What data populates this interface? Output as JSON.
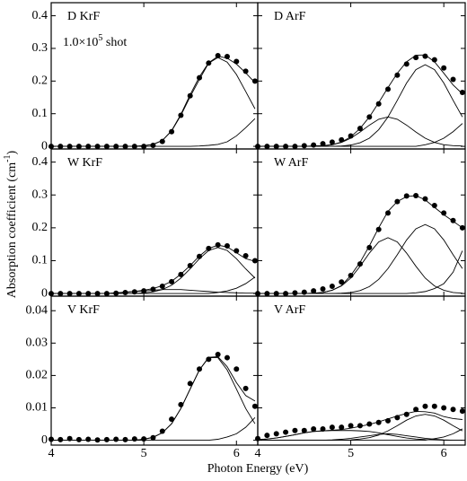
{
  "y_label": "Absorption coefficient (cm",
  "y_label_sup": "-1",
  "y_label_end": ")",
  "x_label": "Photon Energy (eV)",
  "annotation": "1.0×10",
  "annotation_sup": "5",
  "annotation_end": " shot",
  "chart_data": [
    {
      "type": "scatter",
      "label": "D  KrF",
      "xlim": [
        4,
        6.23
      ],
      "ylim": [
        -0.008,
        0.44
      ],
      "xticks": [
        4,
        5,
        6
      ],
      "yticks": [
        0,
        0.1,
        0.2,
        0.3,
        0.4
      ],
      "show_xtick_labels": false,
      "show_ytick_labels": true,
      "x": [
        4,
        4.1,
        4.2,
        4.3,
        4.4,
        4.5,
        4.6,
        4.7,
        4.8,
        4.9,
        5,
        5.1,
        5.2,
        5.3,
        5.4,
        5.5,
        5.6,
        5.7,
        5.8,
        5.9,
        6,
        6.1,
        6.2
      ],
      "series": [
        {
          "style": "markers",
          "color": "#000000",
          "values": [
            0,
            0,
            0,
            0,
            0,
            0,
            0,
            0,
            0,
            0,
            0,
            0.003,
            0.015,
            0.045,
            0.095,
            0.155,
            0.21,
            0.255,
            0.278,
            0.275,
            0.26,
            0.23,
            0.2
          ]
        },
        {
          "style": "line",
          "color": "#000000",
          "values": [
            0,
            0,
            0,
            0,
            0,
            0,
            0,
            0,
            0,
            0,
            0.002,
            0.006,
            0.018,
            0.048,
            0.098,
            0.158,
            0.213,
            0.256,
            0.276,
            0.27,
            0.252,
            0.225,
            0.195
          ]
        },
        {
          "style": "line",
          "color": "#000000",
          "values": [
            0,
            0,
            0,
            0,
            0,
            0,
            0,
            0,
            0,
            0,
            0.002,
            0.006,
            0.018,
            0.047,
            0.095,
            0.152,
            0.205,
            0.255,
            0.272,
            0.258,
            0.22,
            0.168,
            0.115
          ]
        },
        {
          "style": "line",
          "color": "#000000",
          "values": [
            0,
            0,
            0,
            0,
            0,
            0,
            0,
            0,
            0,
            0,
            0,
            0,
            0,
            0,
            0,
            0,
            0.001,
            0.003,
            0.006,
            0.014,
            0.032,
            0.057,
            0.085
          ]
        }
      ]
    },
    {
      "type": "scatter",
      "label": "D  ArF",
      "xlim": [
        4,
        6.23
      ],
      "ylim": [
        -0.008,
        0.44
      ],
      "xticks": [
        4,
        5,
        6
      ],
      "yticks": [
        0,
        0.1,
        0.2,
        0.3,
        0.4
      ],
      "show_xtick_labels": false,
      "show_ytick_labels": false,
      "x": [
        4,
        4.1,
        4.2,
        4.3,
        4.4,
        4.5,
        4.6,
        4.7,
        4.8,
        4.9,
        5,
        5.1,
        5.2,
        5.3,
        5.4,
        5.5,
        5.6,
        5.7,
        5.8,
        5.9,
        6,
        6.1,
        6.2
      ],
      "series": [
        {
          "style": "markers",
          "color": "#000000",
          "values": [
            0,
            0,
            0,
            0,
            0,
            0.002,
            0.004,
            0.008,
            0.013,
            0.02,
            0.032,
            0.055,
            0.09,
            0.13,
            0.175,
            0.218,
            0.252,
            0.272,
            0.276,
            0.265,
            0.24,
            0.205,
            0.165
          ]
        },
        {
          "style": "line",
          "color": "#000000",
          "values": [
            0,
            0,
            0,
            0,
            0,
            0,
            0.001,
            0.002,
            0.005,
            0.013,
            0.029,
            0.055,
            0.09,
            0.134,
            0.18,
            0.224,
            0.259,
            0.279,
            0.28,
            0.259,
            0.224,
            0.188,
            0.161
          ]
        },
        {
          "style": "line",
          "color": "#000000",
          "values": [
            0,
            0,
            0,
            0,
            0,
            0,
            0.001,
            0.002,
            0.005,
            0.012,
            0.025,
            0.044,
            0.065,
            0.083,
            0.09,
            0.083,
            0.065,
            0.044,
            0.025,
            0.012,
            0.005,
            0.002,
            0.001
          ]
        },
        {
          "style": "line",
          "color": "#000000",
          "values": [
            0,
            0,
            0,
            0,
            0,
            0,
            0,
            0,
            0,
            0.001,
            0.004,
            0.011,
            0.025,
            0.051,
            0.09,
            0.141,
            0.194,
            0.235,
            0.25,
            0.235,
            0.194,
            0.141,
            0.09
          ]
        },
        {
          "style": "line",
          "color": "#000000",
          "values": [
            0,
            0,
            0,
            0,
            0,
            0,
            0,
            0,
            0,
            0,
            0,
            0,
            0,
            0,
            0,
            0,
            0,
            0,
            0.005,
            0.012,
            0.025,
            0.045,
            0.07
          ]
        }
      ]
    },
    {
      "type": "scatter",
      "label": "W  KrF",
      "xlim": [
        4,
        6.23
      ],
      "ylim": [
        -0.008,
        0.44
      ],
      "xticks": [
        4,
        5,
        6
      ],
      "yticks": [
        0,
        0.1,
        0.2,
        0.3,
        0.4
      ],
      "show_xtick_labels": false,
      "show_ytick_labels": true,
      "x": [
        4,
        4.1,
        4.2,
        4.3,
        4.4,
        4.5,
        4.6,
        4.7,
        4.8,
        4.9,
        5,
        5.1,
        5.2,
        5.3,
        5.4,
        5.5,
        5.6,
        5.7,
        5.8,
        5.9,
        6,
        6.1,
        6.2
      ],
      "series": [
        {
          "style": "markers",
          "color": "#000000",
          "values": [
            0,
            0,
            0,
            0,
            0,
            0,
            0,
            0.001,
            0.003,
            0.005,
            0.008,
            0.013,
            0.022,
            0.036,
            0.058,
            0.085,
            0.113,
            0.137,
            0.148,
            0.145,
            0.13,
            0.115,
            0.1
          ]
        },
        {
          "style": "line",
          "color": "#000000",
          "values": [
            0,
            0,
            0,
            0,
            0,
            0,
            0,
            0.002,
            0.004,
            0.006,
            0.01,
            0.015,
            0.024,
            0.037,
            0.059,
            0.085,
            0.114,
            0.137,
            0.147,
            0.142,
            0.124,
            0.106,
            0.098
          ]
        },
        {
          "style": "line",
          "color": "#000000",
          "values": [
            0,
            0,
            0,
            0,
            0,
            0,
            0,
            0,
            0,
            0,
            0.002,
            0.005,
            0.012,
            0.025,
            0.047,
            0.075,
            0.106,
            0.131,
            0.14,
            0.131,
            0.106,
            0.075,
            0.047
          ]
        },
        {
          "style": "line",
          "color": "#000000",
          "values": [
            0,
            0,
            0,
            0,
            0,
            0,
            0,
            0.002,
            0.004,
            0.006,
            0.008,
            0.01,
            0.012,
            0.012,
            0.012,
            0.01,
            0.008,
            0.006,
            0.004,
            0.003,
            0.002,
            0.001,
            0.001
          ]
        },
        {
          "style": "line",
          "color": "#000000",
          "values": [
            0,
            0,
            0,
            0,
            0,
            0,
            0,
            0,
            0,
            0,
            0,
            0,
            0,
            0,
            0,
            0,
            0,
            0,
            0.003,
            0.008,
            0.016,
            0.03,
            0.05
          ]
        }
      ]
    },
    {
      "type": "scatter",
      "label": "W  ArF",
      "xlim": [
        4,
        6.23
      ],
      "ylim": [
        -0.008,
        0.44
      ],
      "xticks": [
        4,
        5,
        6
      ],
      "yticks": [
        0,
        0.1,
        0.2,
        0.3,
        0.4
      ],
      "show_xtick_labels": false,
      "show_ytick_labels": false,
      "x": [
        4,
        4.1,
        4.2,
        4.3,
        4.4,
        4.5,
        4.6,
        4.7,
        4.8,
        4.9,
        5,
        5.1,
        5.2,
        5.3,
        5.4,
        5.5,
        5.6,
        5.7,
        5.8,
        5.9,
        6,
        6.1,
        6.2
      ],
      "series": [
        {
          "style": "markers",
          "color": "#000000",
          "values": [
            0,
            0,
            0,
            0,
            0.002,
            0.004,
            0.008,
            0.014,
            0.022,
            0.035,
            0.055,
            0.09,
            0.14,
            0.195,
            0.245,
            0.28,
            0.297,
            0.298,
            0.288,
            0.268,
            0.245,
            0.222,
            0.2
          ]
        },
        {
          "style": "line",
          "color": "#000000",
          "values": [
            0,
            0,
            0,
            0,
            0,
            0,
            0.001,
            0.003,
            0.01,
            0.024,
            0.055,
            0.095,
            0.145,
            0.2,
            0.25,
            0.28,
            0.295,
            0.298,
            0.285,
            0.262,
            0.24,
            0.22,
            0.2
          ]
        },
        {
          "style": "line",
          "color": "#000000",
          "values": [
            0,
            0,
            0,
            0,
            0,
            0,
            0.001,
            0.003,
            0.01,
            0.023,
            0.047,
            0.083,
            0.123,
            0.157,
            0.17,
            0.157,
            0.123,
            0.083,
            0.047,
            0.023,
            0.01,
            0.003,
            0.001
          ]
        },
        {
          "style": "line",
          "color": "#000000",
          "values": [
            0,
            0,
            0,
            0,
            0,
            0,
            0,
            0,
            0,
            0.001,
            0.003,
            0.009,
            0.021,
            0.043,
            0.076,
            0.118,
            0.163,
            0.197,
            0.21,
            0.197,
            0.163,
            0.118,
            0.076
          ]
        },
        {
          "style": "line",
          "color": "#000000",
          "values": [
            0,
            0,
            0,
            0,
            0,
            0,
            0,
            0,
            0,
            0,
            0,
            0,
            0,
            0,
            0,
            0,
            0,
            0.002,
            0.006,
            0.015,
            0.03,
            0.065,
            0.13
          ]
        }
      ]
    },
    {
      "type": "scatter",
      "label": "V  KrF",
      "xlim": [
        4,
        6.23
      ],
      "ylim": [
        -0.0015,
        0.0445
      ],
      "xticks": [
        4,
        5,
        6
      ],
      "yticks": [
        0,
        0.01,
        0.02,
        0.03,
        0.04
      ],
      "show_xtick_labels": true,
      "show_ytick_labels": true,
      "x": [
        4,
        4.1,
        4.2,
        4.3,
        4.4,
        4.5,
        4.6,
        4.7,
        4.8,
        4.9,
        5,
        5.1,
        5.2,
        5.3,
        5.4,
        5.5,
        5.6,
        5.7,
        5.8,
        5.9,
        6,
        6.1,
        6.2
      ],
      "series": [
        {
          "style": "markers",
          "color": "#000000",
          "values": [
            0.0003,
            0.0002,
            0.0005,
            0.0002,
            0.0003,
            0.0001,
            0.0002,
            0.0003,
            0.0002,
            0.0004,
            0.0004,
            0.0008,
            0.0028,
            0.0065,
            0.011,
            0.0175,
            0.022,
            0.025,
            0.0265,
            0.0255,
            0.022,
            0.016,
            0.0105
          ]
        },
        {
          "style": "line",
          "color": "#000000",
          "values": [
            0,
            0,
            0,
            0,
            0,
            0,
            0,
            0,
            0,
            0,
            0.0003,
            0.0009,
            0.0023,
            0.0051,
            0.0098,
            0.0158,
            0.0217,
            0.0256,
            0.0258,
            0.0227,
            0.0178,
            0.0138,
            0.0121
          ]
        },
        {
          "style": "line",
          "color": "#000000",
          "values": [
            0,
            0,
            0,
            0,
            0,
            0,
            0,
            0,
            0,
            0,
            0.0003,
            0.0009,
            0.0023,
            0.0051,
            0.0098,
            0.0158,
            0.0217,
            0.0255,
            0.0255,
            0.0217,
            0.0158,
            0.0098,
            0.0051
          ]
        },
        {
          "style": "line",
          "color": "#000000",
          "values": [
            0,
            0,
            0,
            0,
            0,
            0,
            0,
            0,
            0,
            0,
            0,
            0,
            0,
            0,
            0,
            0,
            0,
            0,
            0.0003,
            0.001,
            0.002,
            0.004,
            0.007
          ]
        }
      ]
    },
    {
      "type": "scatter",
      "label": "V  ArF",
      "xlim": [
        4,
        6.23
      ],
      "ylim": [
        -0.0015,
        0.0445
      ],
      "xticks": [
        4,
        5,
        6
      ],
      "yticks": [
        0,
        0.01,
        0.02,
        0.03,
        0.04
      ],
      "show_xtick_labels": true,
      "show_ytick_labels": false,
      "x": [
        4,
        4.1,
        4.2,
        4.3,
        4.4,
        4.5,
        4.6,
        4.7,
        4.8,
        4.9,
        5,
        5.1,
        5.2,
        5.3,
        5.4,
        5.5,
        5.6,
        5.7,
        5.8,
        5.9,
        6,
        6.1,
        6.2
      ],
      "series": [
        {
          "style": "markers",
          "color": "#000000",
          "values": [
            0.0005,
            0.0015,
            0.002,
            0.0025,
            0.003,
            0.003,
            0.0035,
            0.0035,
            0.004,
            0.004,
            0.0045,
            0.0045,
            0.005,
            0.0055,
            0.006,
            0.007,
            0.008,
            0.0095,
            0.0105,
            0.0105,
            0.01,
            0.0095,
            0.009
          ]
        },
        {
          "style": "line",
          "color": "#000000",
          "values": [
            0.0002,
            0.0004,
            0.0007,
            0.0012,
            0.0017,
            0.0023,
            0.0027,
            0.0029,
            0.0031,
            0.0033,
            0.0037,
            0.0043,
            0.0049,
            0.0057,
            0.0066,
            0.0075,
            0.0083,
            0.0089,
            0.0088,
            0.0084,
            0.0073,
            0.0067,
            0.0064
          ]
        },
        {
          "style": "line",
          "color": "#000000",
          "values": [
            0.0002,
            0.0004,
            0.0007,
            0.0012,
            0.0017,
            0.0023,
            0.0027,
            0.0029,
            0.003,
            0.003,
            0.003,
            0.0029,
            0.0027,
            0.0023,
            0.0017,
            0.0012,
            0.0007,
            0.0004,
            0.0002,
            0.0001,
            0,
            0,
            0
          ]
        },
        {
          "style": "line",
          "color": "#000000",
          "values": [
            0,
            0,
            0,
            0,
            0,
            0,
            0,
            0,
            0.0001,
            0.0003,
            0.0006,
            0.001,
            0.0014,
            0.0018,
            0.002,
            0.0018,
            0.0014,
            0.001,
            0.0006,
            0.0003,
            0.0001,
            0,
            0
          ]
        },
        {
          "style": "line",
          "color": "#000000",
          "values": [
            0,
            0,
            0,
            0,
            0,
            0,
            0,
            0,
            0,
            0,
            0.0001,
            0.0004,
            0.0008,
            0.0016,
            0.0029,
            0.0045,
            0.0062,
            0.0075,
            0.008,
            0.0075,
            0.0062,
            0.0045,
            0.0029
          ]
        },
        {
          "style": "line",
          "color": "#000000",
          "values": [
            0,
            0,
            0,
            0,
            0,
            0,
            0,
            0,
            0,
            0,
            0,
            0,
            0,
            0,
            0,
            0,
            0,
            0,
            0,
            0.0005,
            0.001,
            0.002,
            0.0035
          ]
        }
      ]
    }
  ]
}
